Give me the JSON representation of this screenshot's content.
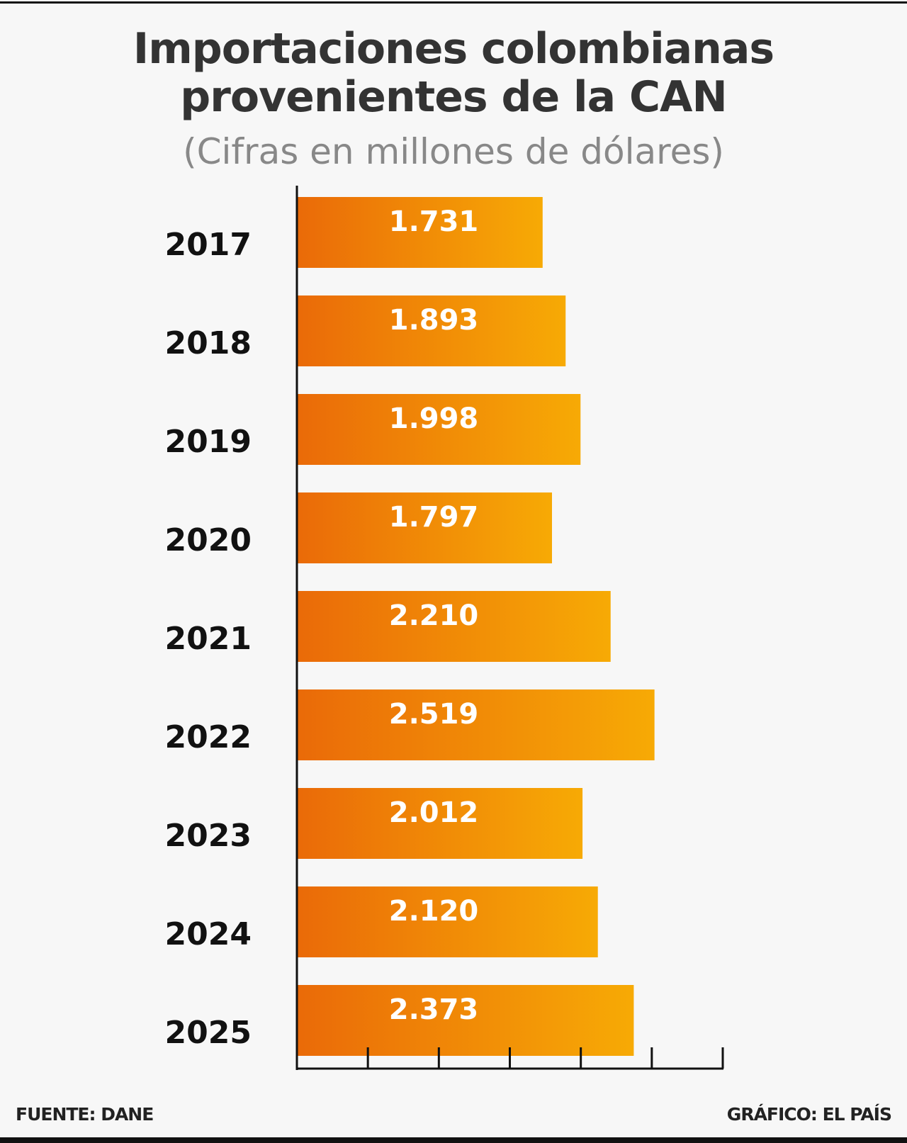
{
  "title_line1": "Importaciones colombianas",
  "title_line2": "provenientes de la CAN",
  "subtitle": "(Cifras en millones de dólares)",
  "source": "FUENTE: DANE",
  "credit": "GRÁFICO: EL PAÍS",
  "colors": {
    "bar_start": "#ea6a08",
    "bar_end": "#f7aa05",
    "label": "#ffffff",
    "axis": "#111111"
  },
  "chart_data": {
    "type": "bar",
    "orientation": "horizontal",
    "title": "Importaciones colombianas provenientes de la CAN",
    "subtitle": "(Cifras en millones de dólares)",
    "categories": [
      "2017",
      "2018",
      "2019",
      "2020",
      "2021",
      "2022",
      "2023",
      "2024",
      "2025"
    ],
    "values": [
      1731,
      1893,
      1998,
      1797,
      2210,
      2519,
      2012,
      2120,
      2373
    ],
    "data_labels": [
      "1.731",
      "1.893",
      "1.998",
      "1.797",
      "2.210",
      "2.519",
      "2.012",
      "2.120",
      "2.373"
    ],
    "xlim": [
      0,
      3000
    ],
    "x_ticks": [
      0,
      500,
      1000,
      1500,
      2000,
      2500,
      3000
    ],
    "grid": false
  }
}
